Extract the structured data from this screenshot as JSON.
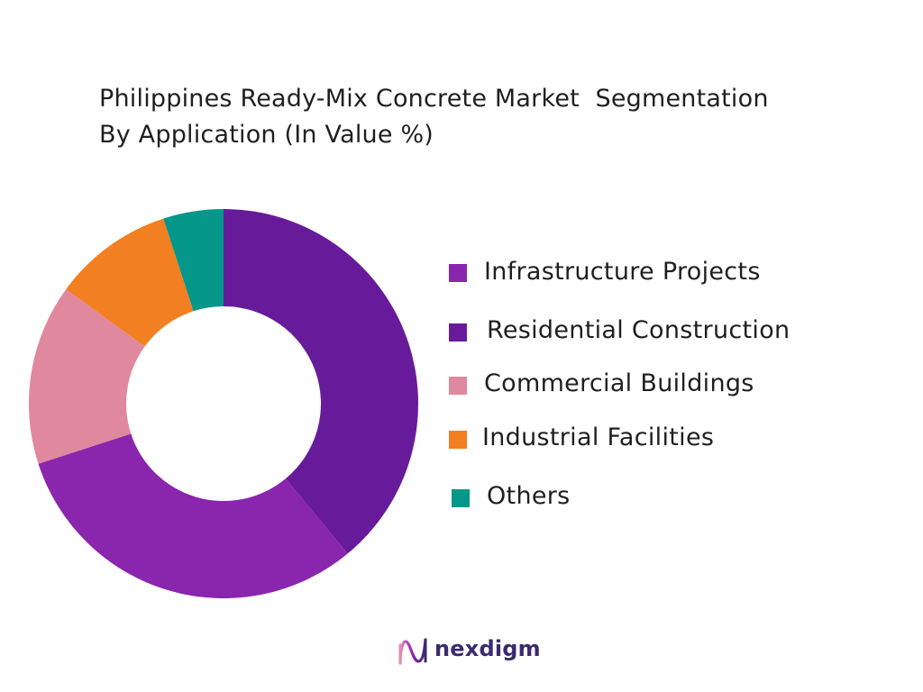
{
  "title": "Philippines Ready-Mix Concrete Market  Segmentation\nBy Application (In Value %)",
  "chart_data": {
    "type": "pie",
    "variant": "donut",
    "title": "Philippines Ready-Mix Concrete Market  Segmentation By Application (In Value %)",
    "legend_position": "right",
    "categories": [
      "Infrastructure Projects",
      "Residential Construction",
      "Commercial Buildings",
      "Industrial Facilities",
      "Others"
    ],
    "values": [
      31,
      39,
      15,
      10,
      5
    ],
    "colors": [
      "#8a25ad",
      "#671b9a",
      "#e0889e",
      "#f27f21",
      "#04978a"
    ]
  },
  "brand": {
    "name": "nexdigm",
    "color": "#3b2a6e",
    "icon": "nexdigm-logo-icon"
  }
}
